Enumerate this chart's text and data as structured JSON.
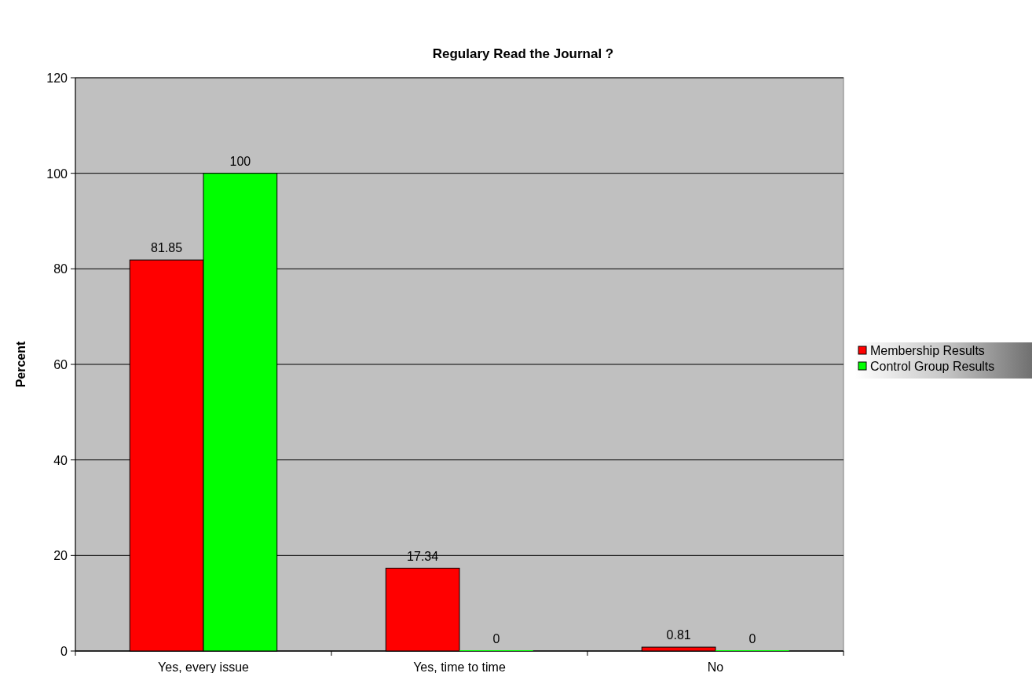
{
  "chart_data": {
    "type": "bar",
    "title": "Regulary Read the Journal ?",
    "ylabel": "Percent",
    "categories": [
      "Yes, every issue",
      "Yes, time to time",
      "No"
    ],
    "series": [
      {
        "name": "Membership Results",
        "color": "#ff0000",
        "values": [
          81.85,
          17.34,
          0.81
        ]
      },
      {
        "name": "Control Group Results",
        "color": "#00ff00",
        "values": [
          100,
          0,
          0
        ]
      }
    ],
    "ylim": [
      0,
      120
    ],
    "yticks": [
      0,
      20,
      40,
      60,
      80,
      100,
      120
    ],
    "grid": "y",
    "legend": "right",
    "data_labels": true
  }
}
